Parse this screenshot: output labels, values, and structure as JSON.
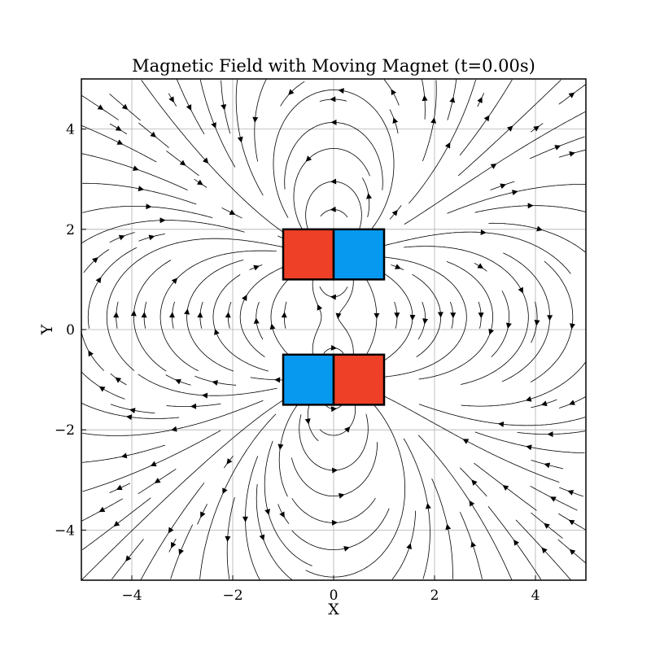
{
  "chart_data": {
    "type": "streamplot",
    "title": "Magnetic Field with Moving Magnet (t=0.00s)",
    "xlabel": "X",
    "ylabel": "Y",
    "xlim": [
      -5,
      5
    ],
    "ylim": [
      -5,
      5
    ],
    "xticks": [
      -4,
      -2,
      0,
      2,
      4
    ],
    "yticks": [
      -4,
      -2,
      0,
      2,
      4
    ],
    "xtick_labels": [
      "−4",
      "−2",
      "0",
      "2",
      "4"
    ],
    "ytick_labels": [
      "−4",
      "−2",
      "0",
      "2",
      "4"
    ],
    "grid": true,
    "t": 0.0,
    "magnets": [
      {
        "name": "upper-magnet",
        "y_range": [
          1,
          2
        ],
        "left": {
          "x_range": [
            -1,
            0
          ],
          "color": "#ee4026"
        },
        "right": {
          "x_range": [
            0,
            1
          ],
          "color": "#0799f0"
        }
      },
      {
        "name": "lower-magnet",
        "y_range": [
          -1.5,
          -0.5
        ],
        "left": {
          "x_range": [
            -1,
            0
          ],
          "color": "#0799f0"
        },
        "right": {
          "x_range": [
            0,
            1
          ],
          "color": "#ee4026"
        }
      }
    ],
    "field": {
      "dipoles": [
        {
          "x": 0,
          "y": 1.5,
          "mx": 1,
          "my": 0
        },
        {
          "x": 0,
          "y": -1.0,
          "mx": -1,
          "my": 0
        }
      ],
      "line_color": "#000000"
    }
  }
}
